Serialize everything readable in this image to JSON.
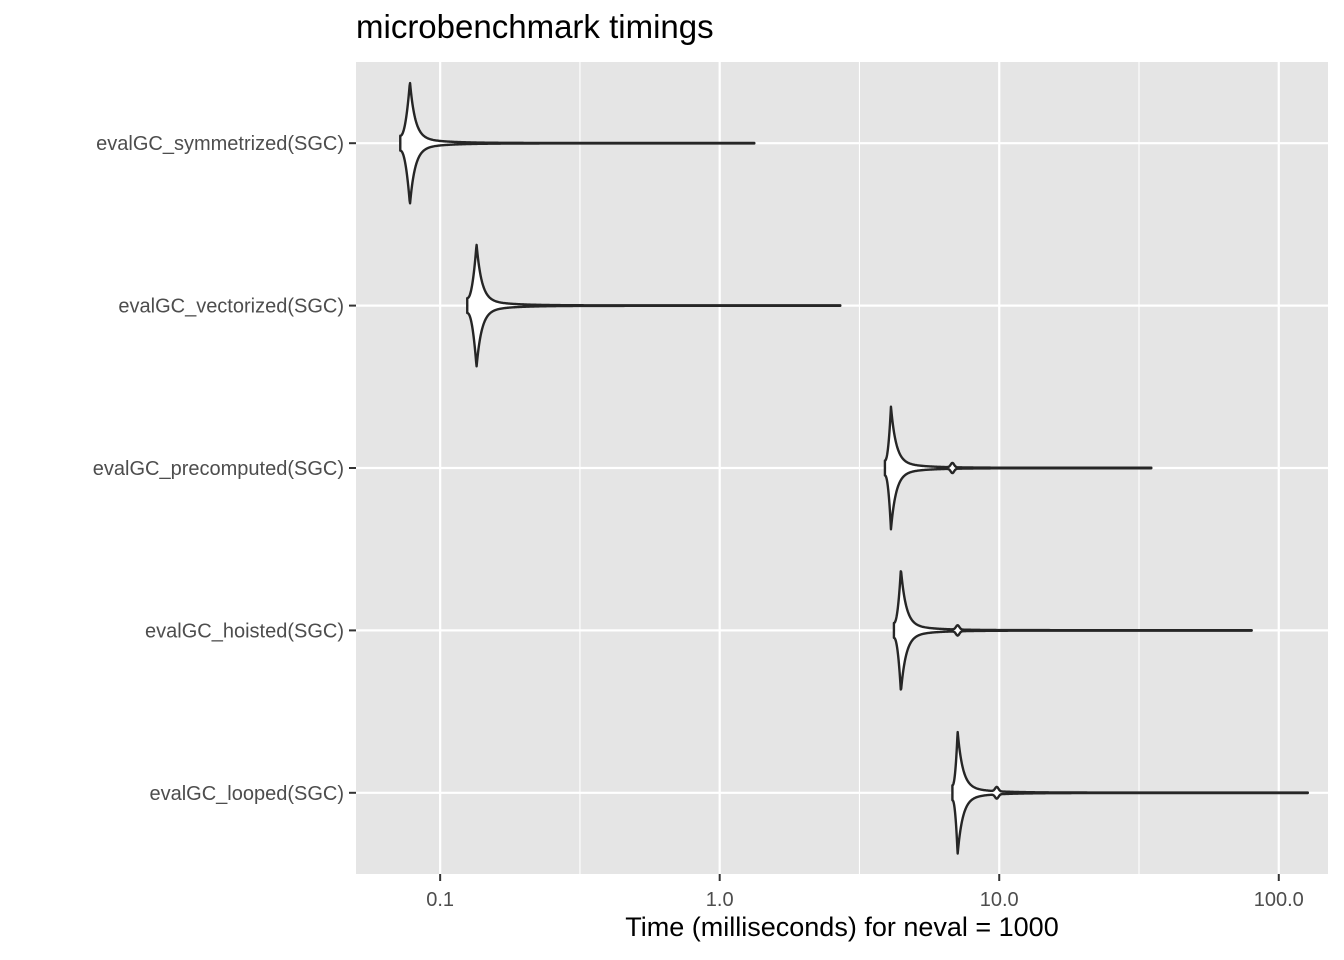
{
  "chart_data": {
    "type": "violin",
    "title": "microbenchmark timings",
    "xlabel": "Time (milliseconds) for neval = 1000",
    "ylabel": "",
    "x_scale": "log10",
    "xlim": [
      0.05,
      150
    ],
    "x_ticks": [
      0.1,
      1.0,
      10.0,
      100.0
    ],
    "x_tick_labels": [
      "0.1",
      "1.0",
      "10.0",
      "100.0"
    ],
    "grid": true,
    "panel_background": "#e5e5e5",
    "grid_color": "#ffffff",
    "outline_color": "#262626",
    "categories": [
      "evalGC_symmetrized(SGC)",
      "evalGC_vectorized(SGC)",
      "evalGC_precomputed(SGC)",
      "evalGC_hoisted(SGC)",
      "evalGC_looped(SGC)"
    ],
    "series": [
      {
        "name": "evalGC_symmetrized(SGC)",
        "min": 0.072,
        "mode": 0.078,
        "max": 1.33,
        "mean": null
      },
      {
        "name": "evalGC_vectorized(SGC)",
        "min": 0.125,
        "mode": 0.135,
        "max": 2.7,
        "mean": null
      },
      {
        "name": "evalGC_precomputed(SGC)",
        "min": 3.9,
        "mode": 4.1,
        "max": 35.0,
        "mean": 6.8
      },
      {
        "name": "evalGC_hoisted(SGC)",
        "min": 4.2,
        "mode": 4.45,
        "max": 80.0,
        "mean": 7.1
      },
      {
        "name": "evalGC_looped(SGC)",
        "min": 6.8,
        "mode": 7.1,
        "max": 127.0,
        "mean": 9.8
      }
    ]
  }
}
